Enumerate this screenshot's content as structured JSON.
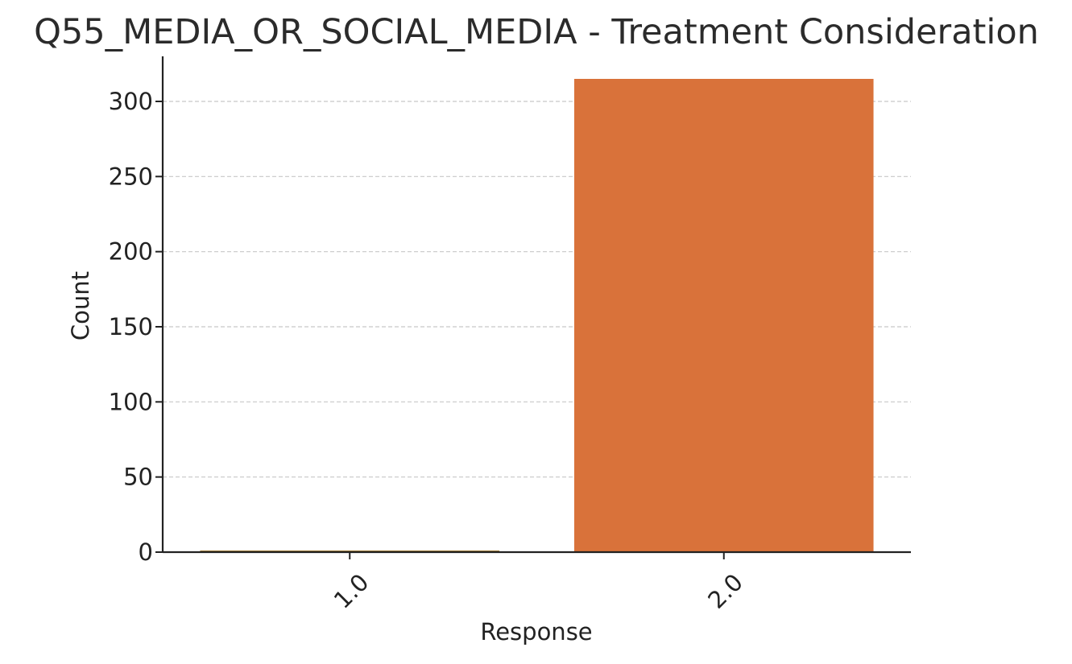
{
  "chart_data": {
    "type": "bar",
    "title": "Q55_MEDIA_OR_SOCIAL_MEDIA - Treatment Consideration",
    "xlabel": "Response",
    "ylabel": "Count",
    "categories": [
      "1.0",
      "2.0"
    ],
    "values": [
      1,
      315
    ],
    "ylim": [
      0,
      330
    ],
    "yticks": [
      0,
      50,
      100,
      150,
      200,
      250,
      300
    ],
    "grid": "horizontal-dashed",
    "legend": "none",
    "colors": {
      "bars": [
        "#9b6a0c",
        "#d9723a"
      ],
      "grid": "#c8c8c8",
      "axis": "#222222",
      "text": "#222222"
    }
  }
}
